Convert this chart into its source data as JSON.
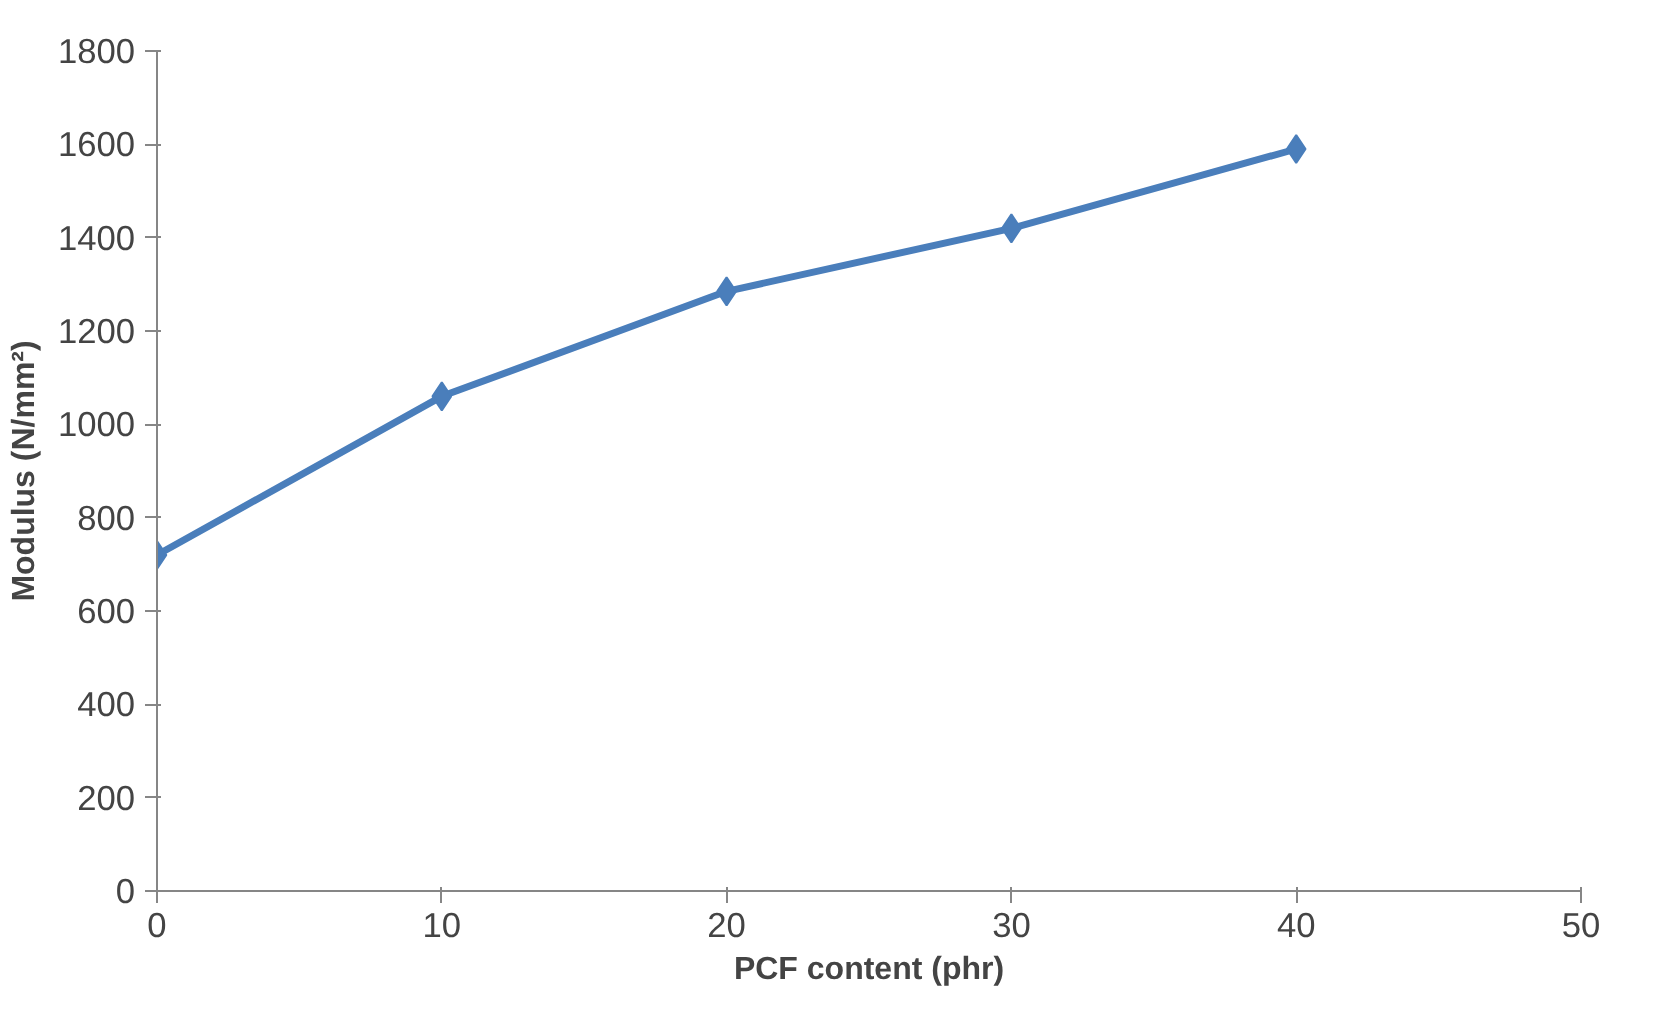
{
  "chart_data": {
    "type": "line",
    "xlabel": "PCF content (phr)",
    "ylabel": "Modulus (N/mm²)",
    "x": [
      0,
      10,
      20,
      30,
      40
    ],
    "series": [
      {
        "color": "#4a7ebb",
        "values": [
          720,
          1060,
          1285,
          1420,
          1590
        ]
      }
    ],
    "xlim": [
      0,
      50
    ],
    "xticks": [
      0,
      10,
      20,
      30,
      40,
      50
    ],
    "ylim": [
      0,
      1800
    ],
    "yticks": [
      0,
      200,
      400,
      600,
      800,
      1000,
      1200,
      1400,
      1600,
      1800
    ],
    "grid": false,
    "marker": "diamond",
    "line_style": "solid"
  }
}
